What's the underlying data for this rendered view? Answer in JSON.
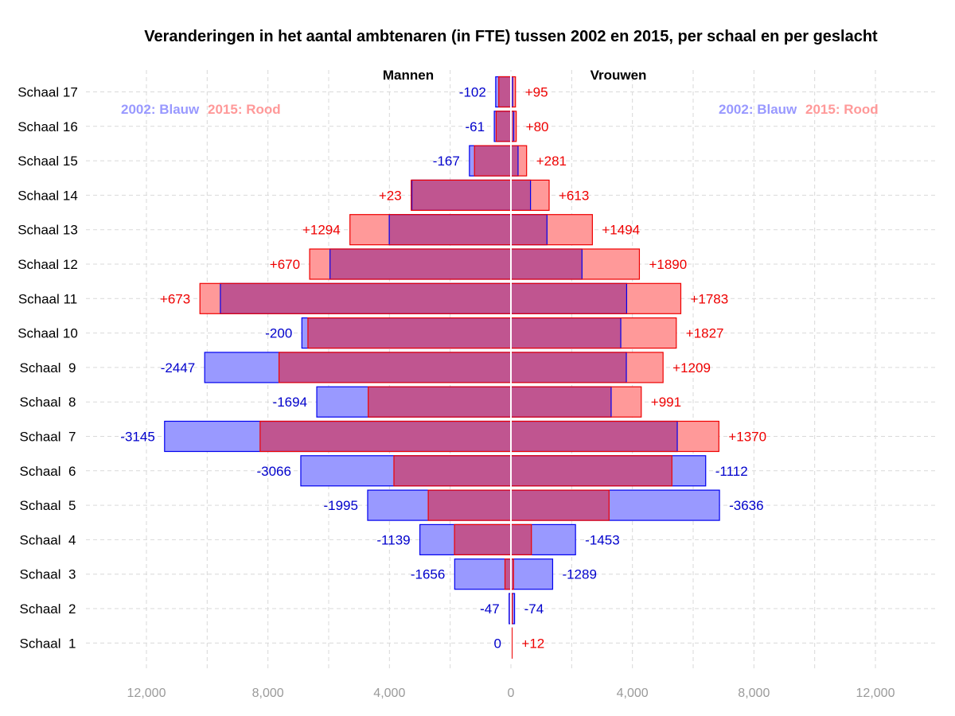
{
  "chart_data": {
    "type": "bar",
    "orientation": "horizontal",
    "layout": "population-pyramid",
    "title": "Veranderingen in het aantal ambtenaren (in FTE) tussen 2002 en 2015, per schaal en per geslacht",
    "left_side_label": "Mannen",
    "right_side_label": "Vrouwen",
    "legend": {
      "left": [
        {
          "text": "2002: Blauw",
          "color": "#9999ff"
        },
        {
          "text": "2015: Rood",
          "color": "#ff9999"
        }
      ],
      "right": [
        {
          "text": "2002: Blauw",
          "color": "#9999ff"
        },
        {
          "text": "2015: Rood",
          "color": "#ff9999"
        }
      ],
      "placement": "top-left and top-right"
    },
    "xlim": [
      -14000,
      14000
    ],
    "xticks": [
      -12000,
      -8000,
      -4000,
      0,
      4000,
      8000,
      12000
    ],
    "xtick_labels": [
      "12,000",
      "8,000",
      "4,000",
      "0",
      "4,000",
      "8,000",
      "12,000"
    ],
    "grid": true,
    "colors": {
      "y2002_fill": "#9999ff",
      "y2002_stroke": "#0000ee",
      "y2015_fill": "#ff9999",
      "y2015_stroke": "#ee0000",
      "overlap_fill": "#c05590",
      "negative_label": "#0000cc",
      "positive_label": "#ee0000"
    },
    "categories": [
      "Schaal 17",
      "Schaal 16",
      "Schaal 15",
      "Schaal 14",
      "Schaal 13",
      "Schaal 12",
      "Schaal 11",
      "Schaal 10",
      "Schaal  9",
      "Schaal  8",
      "Schaal  7",
      "Schaal  6",
      "Schaal  5",
      "Schaal  4",
      "Schaal  3",
      "Schaal  2",
      "Schaal  1"
    ],
    "series": [
      {
        "name": "2002",
        "side": "Mannen",
        "values": [
          502,
          548,
          1367,
          3260,
          4006,
          5957,
          9566,
          6883,
          10082,
          6392,
          11403,
          6918,
          4717,
          2997,
          1852,
          60,
          0
        ]
      },
      {
        "name": "2015",
        "side": "Mannen",
        "values": [
          400,
          487,
          1200,
          3283,
          5300,
          6627,
          10239,
          6683,
          7635,
          4698,
          8258,
          3852,
          2722,
          1858,
          196,
          13,
          0
        ]
      },
      {
        "name": "2002",
        "side": "Vrouwen",
        "values": [
          55,
          95,
          235,
          645,
          1188,
          2340,
          3810,
          3617,
          3800,
          3300,
          5477,
          6412,
          6867,
          2127,
          1374,
          120,
          25
        ]
      },
      {
        "name": "2015",
        "side": "Vrouwen",
        "values": [
          150,
          175,
          516,
          1258,
          2682,
          4230,
          5593,
          5444,
          5009,
          4291,
          6847,
          5300,
          3231,
          674,
          85,
          46,
          37
        ]
      }
    ],
    "delta_labels_mannen": [
      "-102",
      "-61",
      "-167",
      "+23",
      "+1294",
      "+670",
      "+673",
      "-200",
      "-2447",
      "-1694",
      "-3145",
      "-3066",
      "-1995",
      "-1139",
      "-1656",
      "-47",
      "0"
    ],
    "delta_labels_vrouwen": [
      "+95",
      "+80",
      "+281",
      "+613",
      "+1494",
      "+1890",
      "+1783",
      "+1827",
      "+1209",
      "+991",
      "+1370",
      "-1112",
      "-3636",
      "-1453",
      "-1289",
      "-74",
      "+12"
    ]
  }
}
